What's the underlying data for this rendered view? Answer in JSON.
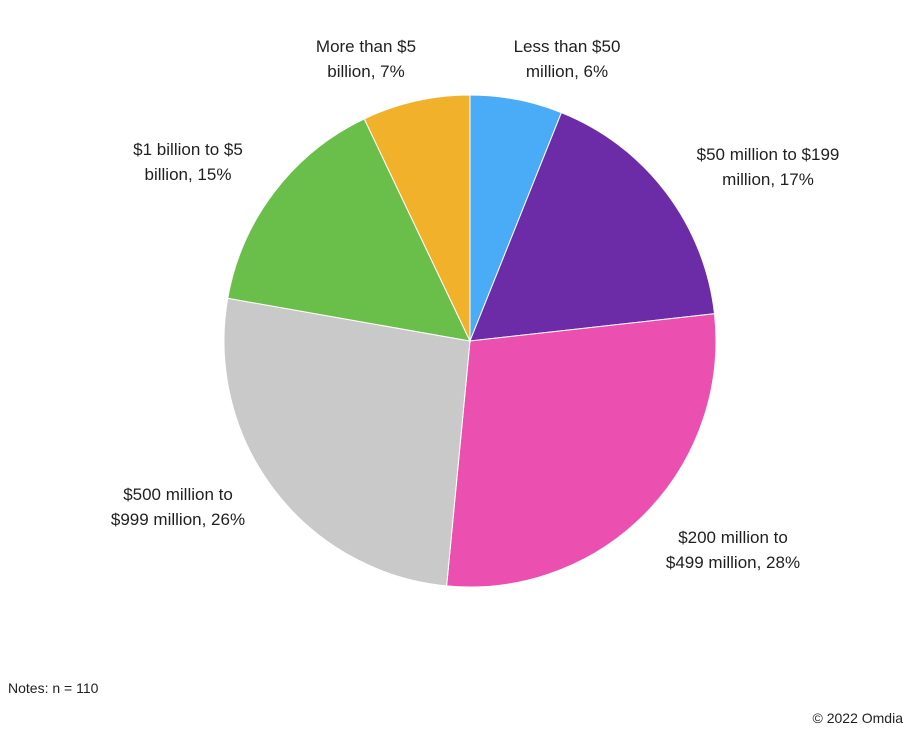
{
  "chart_data": {
    "type": "pie",
    "slices": [
      {
        "label_lines": [
          "Less than $50",
          "million, 6%"
        ],
        "category": "Less than $50 million",
        "value": 6,
        "color": "#4aabf7"
      },
      {
        "label_lines": [
          "$50 million to $199",
          "million, 17%"
        ],
        "category": "$50 million to $199 million",
        "value": 17,
        "color": "#6c2ca7"
      },
      {
        "label_lines": [
          "$200 million to",
          "$499 million, 28%"
        ],
        "category": "$200 million to $499 million",
        "value": 28,
        "color": "#eb4faf"
      },
      {
        "label_lines": [
          "$500 million to",
          "$999 million, 26%"
        ],
        "category": "$500 million to $999 million",
        "value": 26,
        "color": "#c9c9c9"
      },
      {
        "label_lines": [
          "$1 billion to $5",
          "billion, 15%"
        ],
        "category": "$1 billion to $5 billion",
        "value": 15,
        "color": "#6abf4b"
      },
      {
        "label_lines": [
          "More than $5",
          "billion, 7%"
        ],
        "category": "More than $5 billion",
        "value": 7,
        "color": "#f2b12a"
      }
    ]
  },
  "notes": "Notes: n = 110",
  "copyright": "© 2022 Omdia"
}
